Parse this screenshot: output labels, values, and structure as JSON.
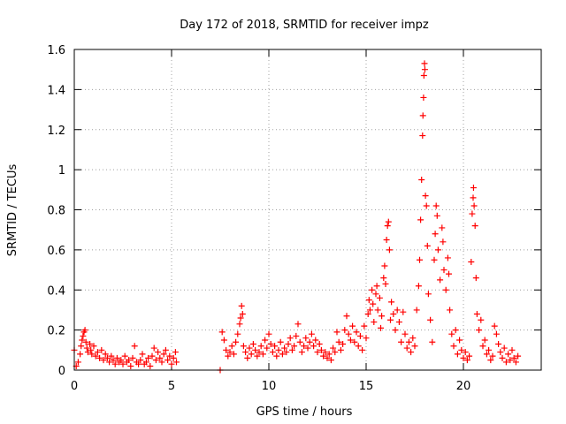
{
  "chart_data": {
    "type": "scatter",
    "title": "Day 172 of 2018, SRMTID for receiver impz",
    "xlabel": "GPS time / hours",
    "ylabel": "SRMTID / TECUs",
    "xlim": [
      0,
      24
    ],
    "ylim": [
      0,
      1.6
    ],
    "xticks": [
      0,
      5,
      10,
      15,
      20
    ],
    "xtick_labels": [
      "0",
      "5",
      "10",
      "15",
      "20"
    ],
    "yticks": [
      0,
      0.2,
      0.4,
      0.6,
      0.8,
      1.0,
      1.2,
      1.4,
      1.6
    ],
    "ytick_labels": [
      "0",
      "0.2",
      "0.4",
      "0.6",
      "0.8",
      "1",
      "1.2",
      "1.4",
      "1.6"
    ],
    "grid": true,
    "marker": "+",
    "color": "#ff0000",
    "series": [
      {
        "name": "SRMTID",
        "points": [
          [
            0.0,
            0.1
          ],
          [
            0.1,
            0.02
          ],
          [
            0.2,
            0.04
          ],
          [
            0.3,
            0.08
          ],
          [
            0.35,
            0.12
          ],
          [
            0.4,
            0.15
          ],
          [
            0.45,
            0.17
          ],
          [
            0.5,
            0.19
          ],
          [
            0.55,
            0.2
          ],
          [
            0.6,
            0.14
          ],
          [
            0.65,
            0.11
          ],
          [
            0.7,
            0.09
          ],
          [
            0.8,
            0.13
          ],
          [
            0.85,
            0.1
          ],
          [
            0.9,
            0.08
          ],
          [
            1.0,
            0.12
          ],
          [
            1.1,
            0.07
          ],
          [
            1.2,
            0.09
          ],
          [
            1.3,
            0.06
          ],
          [
            1.4,
            0.1
          ],
          [
            1.5,
            0.05
          ],
          [
            1.6,
            0.08
          ],
          [
            1.7,
            0.06
          ],
          [
            1.8,
            0.04
          ],
          [
            1.9,
            0.07
          ],
          [
            2.0,
            0.05
          ],
          [
            2.1,
            0.03
          ],
          [
            2.2,
            0.06
          ],
          [
            2.3,
            0.04
          ],
          [
            2.4,
            0.05
          ],
          [
            2.5,
            0.03
          ],
          [
            2.6,
            0.07
          ],
          [
            2.7,
            0.04
          ],
          [
            2.8,
            0.05
          ],
          [
            2.9,
            0.02
          ],
          [
            3.0,
            0.06
          ],
          [
            3.1,
            0.12
          ],
          [
            3.2,
            0.04
          ],
          [
            3.3,
            0.03
          ],
          [
            3.4,
            0.05
          ],
          [
            3.5,
            0.08
          ],
          [
            3.6,
            0.03
          ],
          [
            3.7,
            0.04
          ],
          [
            3.8,
            0.06
          ],
          [
            3.9,
            0.02
          ],
          [
            4.0,
            0.07
          ],
          [
            4.1,
            0.11
          ],
          [
            4.2,
            0.05
          ],
          [
            4.3,
            0.09
          ],
          [
            4.4,
            0.06
          ],
          [
            4.5,
            0.04
          ],
          [
            4.6,
            0.08
          ],
          [
            4.7,
            0.1
          ],
          [
            4.8,
            0.05
          ],
          [
            4.9,
            0.07
          ],
          [
            5.0,
            0.03
          ],
          [
            5.1,
            0.06
          ],
          [
            5.2,
            0.09
          ],
          [
            5.25,
            0.04
          ],
          [
            7.5,
            0.0
          ],
          [
            7.6,
            0.19
          ],
          [
            7.7,
            0.15
          ],
          [
            7.8,
            0.1
          ],
          [
            7.9,
            0.07
          ],
          [
            8.0,
            0.09
          ],
          [
            8.1,
            0.12
          ],
          [
            8.2,
            0.08
          ],
          [
            8.3,
            0.14
          ],
          [
            8.4,
            0.18
          ],
          [
            8.5,
            0.23
          ],
          [
            8.55,
            0.26
          ],
          [
            8.6,
            0.32
          ],
          [
            8.65,
            0.28
          ],
          [
            8.7,
            0.12
          ],
          [
            8.8,
            0.09
          ],
          [
            8.9,
            0.06
          ],
          [
            9.0,
            0.11
          ],
          [
            9.1,
            0.08
          ],
          [
            9.2,
            0.13
          ],
          [
            9.3,
            0.1
          ],
          [
            9.4,
            0.07
          ],
          [
            9.5,
            0.09
          ],
          [
            9.6,
            0.12
          ],
          [
            9.7,
            0.08
          ],
          [
            9.8,
            0.15
          ],
          [
            9.9,
            0.11
          ],
          [
            10.0,
            0.18
          ],
          [
            10.1,
            0.13
          ],
          [
            10.2,
            0.09
          ],
          [
            10.3,
            0.12
          ],
          [
            10.4,
            0.07
          ],
          [
            10.5,
            0.1
          ],
          [
            10.6,
            0.14
          ],
          [
            10.7,
            0.08
          ],
          [
            10.8,
            0.11
          ],
          [
            10.9,
            0.09
          ],
          [
            11.0,
            0.13
          ],
          [
            11.1,
            0.16
          ],
          [
            11.2,
            0.1
          ],
          [
            11.3,
            0.12
          ],
          [
            11.4,
            0.17
          ],
          [
            11.5,
            0.23
          ],
          [
            11.6,
            0.14
          ],
          [
            11.7,
            0.09
          ],
          [
            11.8,
            0.12
          ],
          [
            11.9,
            0.16
          ],
          [
            12.0,
            0.11
          ],
          [
            12.1,
            0.14
          ],
          [
            12.2,
            0.18
          ],
          [
            12.3,
            0.12
          ],
          [
            12.4,
            0.15
          ],
          [
            12.5,
            0.09
          ],
          [
            12.6,
            0.13
          ],
          [
            12.7,
            0.1
          ],
          [
            12.8,
            0.07
          ],
          [
            12.9,
            0.09
          ],
          [
            13.0,
            0.06
          ],
          [
            13.1,
            0.08
          ],
          [
            13.2,
            0.05
          ],
          [
            13.3,
            0.11
          ],
          [
            13.4,
            0.09
          ],
          [
            13.5,
            0.19
          ],
          [
            13.6,
            0.14
          ],
          [
            13.7,
            0.1
          ],
          [
            13.8,
            0.13
          ],
          [
            13.9,
            0.2
          ],
          [
            14.0,
            0.27
          ],
          [
            14.1,
            0.18
          ],
          [
            14.2,
            0.15
          ],
          [
            14.3,
            0.22
          ],
          [
            14.4,
            0.14
          ],
          [
            14.5,
            0.19
          ],
          [
            14.6,
            0.12
          ],
          [
            14.7,
            0.17
          ],
          [
            14.8,
            0.1
          ],
          [
            14.9,
            0.22
          ],
          [
            15.0,
            0.16
          ],
          [
            15.1,
            0.28
          ],
          [
            15.15,
            0.35
          ],
          [
            15.2,
            0.3
          ],
          [
            15.3,
            0.4
          ],
          [
            15.35,
            0.33
          ],
          [
            15.4,
            0.24
          ],
          [
            15.5,
            0.38
          ],
          [
            15.55,
            0.42
          ],
          [
            15.6,
            0.3
          ],
          [
            15.7,
            0.36
          ],
          [
            15.75,
            0.21
          ],
          [
            15.8,
            0.27
          ],
          [
            15.9,
            0.46
          ],
          [
            15.95,
            0.52
          ],
          [
            16.0,
            0.43
          ],
          [
            16.05,
            0.65
          ],
          [
            16.1,
            0.72
          ],
          [
            16.15,
            0.74
          ],
          [
            16.2,
            0.6
          ],
          [
            16.25,
            0.25
          ],
          [
            16.3,
            0.34
          ],
          [
            16.4,
            0.28
          ],
          [
            16.5,
            0.2
          ],
          [
            16.6,
            0.3
          ],
          [
            16.7,
            0.24
          ],
          [
            16.8,
            0.14
          ],
          [
            16.9,
            0.29
          ],
          [
            17.0,
            0.18
          ],
          [
            17.1,
            0.11
          ],
          [
            17.2,
            0.14
          ],
          [
            17.3,
            0.09
          ],
          [
            17.4,
            0.16
          ],
          [
            17.5,
            0.12
          ],
          [
            17.6,
            0.3
          ],
          [
            17.7,
            0.42
          ],
          [
            17.75,
            0.55
          ],
          [
            17.8,
            0.75
          ],
          [
            17.85,
            0.95
          ],
          [
            17.9,
            1.17
          ],
          [
            17.92,
            1.27
          ],
          [
            17.95,
            1.36
          ],
          [
            17.97,
            1.47
          ],
          [
            18.0,
            1.53
          ],
          [
            18.02,
            1.5
          ],
          [
            18.05,
            0.87
          ],
          [
            18.1,
            0.82
          ],
          [
            18.15,
            0.62
          ],
          [
            18.2,
            0.38
          ],
          [
            18.3,
            0.25
          ],
          [
            18.4,
            0.14
          ],
          [
            18.5,
            0.55
          ],
          [
            18.55,
            0.68
          ],
          [
            18.6,
            0.82
          ],
          [
            18.65,
            0.77
          ],
          [
            18.7,
            0.6
          ],
          [
            18.8,
            0.45
          ],
          [
            18.9,
            0.71
          ],
          [
            18.95,
            0.64
          ],
          [
            19.0,
            0.5
          ],
          [
            19.1,
            0.4
          ],
          [
            19.2,
            0.56
          ],
          [
            19.25,
            0.48
          ],
          [
            19.3,
            0.3
          ],
          [
            19.4,
            0.18
          ],
          [
            19.5,
            0.12
          ],
          [
            19.6,
            0.2
          ],
          [
            19.7,
            0.08
          ],
          [
            19.8,
            0.15
          ],
          [
            19.9,
            0.1
          ],
          [
            20.0,
            0.06
          ],
          [
            20.1,
            0.09
          ],
          [
            20.2,
            0.05
          ],
          [
            20.3,
            0.07
          ],
          [
            20.4,
            0.54
          ],
          [
            20.45,
            0.78
          ],
          [
            20.5,
            0.86
          ],
          [
            20.52,
            0.91
          ],
          [
            20.55,
            0.82
          ],
          [
            20.6,
            0.72
          ],
          [
            20.65,
            0.46
          ],
          [
            20.7,
            0.28
          ],
          [
            20.8,
            0.2
          ],
          [
            20.9,
            0.25
          ],
          [
            21.0,
            0.12
          ],
          [
            21.1,
            0.15
          ],
          [
            21.2,
            0.08
          ],
          [
            21.3,
            0.1
          ],
          [
            21.4,
            0.05
          ],
          [
            21.5,
            0.07
          ],
          [
            21.6,
            0.22
          ],
          [
            21.7,
            0.18
          ],
          [
            21.8,
            0.13
          ],
          [
            21.9,
            0.09
          ],
          [
            22.0,
            0.06
          ],
          [
            22.1,
            0.11
          ],
          [
            22.2,
            0.04
          ],
          [
            22.3,
            0.08
          ],
          [
            22.4,
            0.05
          ],
          [
            22.5,
            0.1
          ],
          [
            22.6,
            0.06
          ],
          [
            22.7,
            0.04
          ],
          [
            22.8,
            0.07
          ]
        ]
      }
    ]
  }
}
